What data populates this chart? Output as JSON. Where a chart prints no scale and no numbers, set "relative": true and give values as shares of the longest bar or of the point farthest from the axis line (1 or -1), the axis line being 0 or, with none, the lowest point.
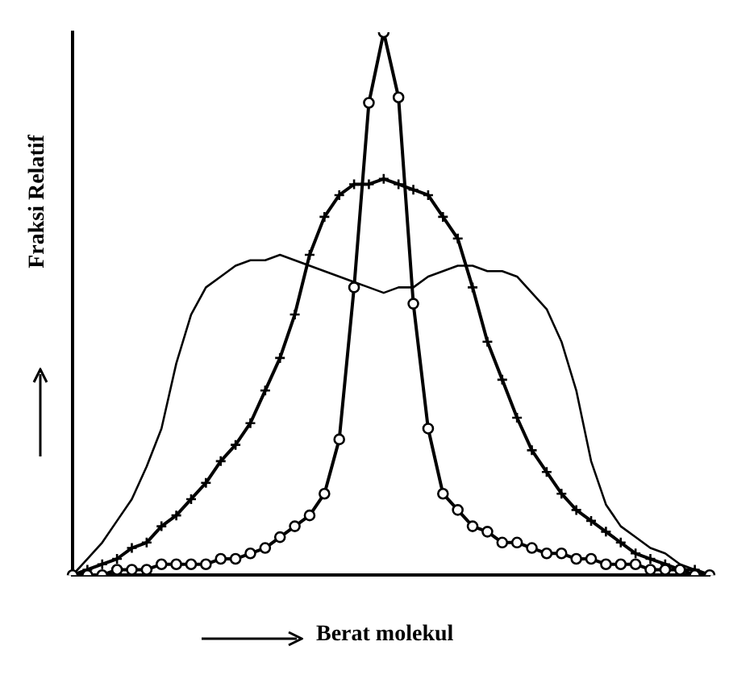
{
  "chart_data": {
    "type": "line",
    "xlabel": "Berat molekul",
    "ylabel": "Fraksi Relatif",
    "relative": true,
    "grid": false,
    "legend": false,
    "line_style": "solid",
    "categories": [
      null,
      null,
      null,
      null,
      null,
      null,
      null,
      null,
      null,
      null,
      null,
      null,
      null,
      null,
      null,
      null,
      null,
      null,
      null,
      null,
      null,
      null,
      null,
      null,
      null,
      null,
      null,
      null,
      null,
      null,
      null,
      null,
      null,
      null,
      null,
      null,
      null,
      null,
      null,
      null,
      null,
      null,
      null,
      null
    ],
    "series": [
      {
        "color": "#000000",
        "marker": "none",
        "values": [
          0,
          0.03,
          0.06,
          0.1,
          0.14,
          0.2,
          0.27,
          0.39,
          0.48,
          0.53,
          0.55,
          0.57,
          0.58,
          0.58,
          0.59,
          0.58,
          0.57,
          0.56,
          0.55,
          0.54,
          0.53,
          0.52,
          0.53,
          0.53,
          0.55,
          0.56,
          0.57,
          0.57,
          0.56,
          0.56,
          0.55,
          0.52,
          0.49,
          0.43,
          0.34,
          0.21,
          0.13,
          0.09,
          0.07,
          0.05,
          0.04,
          0.02,
          0.01,
          0
        ]
      },
      {
        "color": "#000000",
        "marker": "cross",
        "values": [
          0,
          0.01,
          0.02,
          0.03,
          0.05,
          0.06,
          0.09,
          0.11,
          0.14,
          0.17,
          0.21,
          0.24,
          0.28,
          0.34,
          0.4,
          0.48,
          0.59,
          0.66,
          0.7,
          0.72,
          0.72,
          0.73,
          0.72,
          0.71,
          0.7,
          0.66,
          0.62,
          0.53,
          0.43,
          0.36,
          0.29,
          0.23,
          0.19,
          0.15,
          0.12,
          0.1,
          0.08,
          0.06,
          0.04,
          0.03,
          0.02,
          0.01,
          0.01,
          0
        ]
      },
      {
        "color": "#000000",
        "marker": "circle",
        "values": [
          0,
          0,
          0,
          0.01,
          0.01,
          0.01,
          0.02,
          0.02,
          0.02,
          0.02,
          0.03,
          0.03,
          0.04,
          0.05,
          0.07,
          0.09,
          0.11,
          0.15,
          0.25,
          0.53,
          0.87,
          1,
          0.88,
          0.5,
          0.27,
          0.15,
          0.12,
          0.09,
          0.08,
          0.06,
          0.06,
          0.05,
          0.04,
          0.04,
          0.03,
          0.03,
          0.02,
          0.02,
          0.02,
          0.01,
          0.01,
          0.01,
          0,
          0
        ]
      }
    ]
  }
}
